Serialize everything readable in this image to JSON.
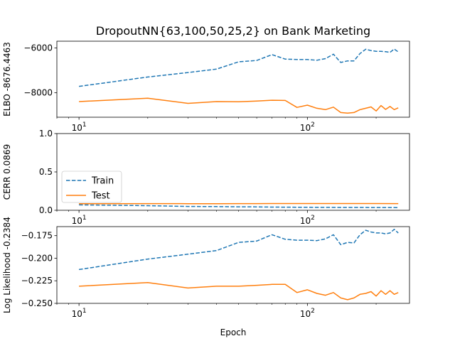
{
  "title": "DropoutNN{63,100,50,25,2} on Bank Marketing",
  "xlabel": "Epoch",
  "colors": {
    "train": "#1f77b4",
    "test": "#ff7f0e"
  },
  "legend": {
    "placement": "lower-left",
    "panel": 1,
    "entries": [
      "Train",
      "Test"
    ]
  },
  "x_ticks": [
    {
      "base": "10",
      "exp": "1"
    },
    {
      "base": "10",
      "exp": "2"
    }
  ],
  "chart_data": [
    {
      "type": "line",
      "xscale": "log",
      "xlim": [
        8,
        280
      ],
      "ylim": [
        -9100,
        -5700
      ],
      "ylabel": "ELBO -8676.4463",
      "yticks": [
        -6000,
        -8000
      ],
      "ytick_labels": [
        "−6000",
        "−8000"
      ],
      "x": [
        10,
        20,
        30,
        40,
        50,
        60,
        70,
        80,
        90,
        100,
        110,
        120,
        130,
        140,
        150,
        160,
        170,
        180,
        190,
        200,
        210,
        220,
        230,
        240,
        250
      ],
      "series": [
        {
          "name": "Train",
          "style": "dashed",
          "values": [
            -7720,
            -7300,
            -7100,
            -6950,
            -6620,
            -6560,
            -6300,
            -6500,
            -6520,
            -6520,
            -6550,
            -6480,
            -6280,
            -6650,
            -6580,
            -6580,
            -6250,
            -6060,
            -6120,
            -6150,
            -6150,
            -6170,
            -6200,
            -6050,
            -6180
          ]
        },
        {
          "name": "Test",
          "style": "solid",
          "values": [
            -8400,
            -8250,
            -8480,
            -8400,
            -8410,
            -8380,
            -8340,
            -8350,
            -8660,
            -8560,
            -8700,
            -8760,
            -8650,
            -8890,
            -8920,
            -8890,
            -8760,
            -8700,
            -8640,
            -8820,
            -8580,
            -8750,
            -8620,
            -8760,
            -8680
          ]
        }
      ]
    },
    {
      "type": "line",
      "xscale": "log",
      "xlim": [
        8,
        280
      ],
      "ylim": [
        0,
        1.0
      ],
      "ylabel": "CERR 0.0869",
      "yticks": [
        0,
        0.5,
        1.0
      ],
      "ytick_labels": [
        "0.0",
        "0.5",
        "1.0"
      ],
      "x": [
        10,
        20,
        30,
        40,
        50,
        60,
        70,
        80,
        90,
        100,
        120,
        150,
        200,
        250
      ],
      "series": [
        {
          "name": "Train",
          "style": "dashed",
          "values": [
            0.07,
            0.06,
            0.05,
            0.048,
            0.045,
            0.044,
            0.042,
            0.041,
            0.04,
            0.039,
            0.038,
            0.037,
            0.036,
            0.035
          ]
        },
        {
          "name": "Test",
          "style": "solid",
          "values": [
            0.085,
            0.087,
            0.086,
            0.086,
            0.087,
            0.087,
            0.088,
            0.088,
            0.088,
            0.088,
            0.088,
            0.088,
            0.088,
            0.087
          ]
        }
      ]
    },
    {
      "type": "line",
      "xscale": "log",
      "xlim": [
        8,
        280
      ],
      "ylim": [
        -0.25,
        -0.165
      ],
      "ylabel": "Log Likelihood -0.2384",
      "yticks": [
        -0.25,
        -0.225,
        -0.2,
        -0.175
      ],
      "ytick_labels": [
        "−0.250",
        "−0.225",
        "−0.200",
        "−0.175"
      ],
      "x": [
        10,
        20,
        30,
        40,
        50,
        60,
        70,
        80,
        90,
        100,
        110,
        120,
        130,
        140,
        150,
        160,
        170,
        180,
        190,
        200,
        210,
        220,
        230,
        240,
        250
      ],
      "series": [
        {
          "name": "Train",
          "style": "dashed",
          "values": [
            -0.2125,
            -0.201,
            -0.1955,
            -0.1915,
            -0.1825,
            -0.181,
            -0.174,
            -0.179,
            -0.18,
            -0.18,
            -0.1805,
            -0.1785,
            -0.174,
            -0.185,
            -0.1825,
            -0.183,
            -0.174,
            -0.169,
            -0.171,
            -0.172,
            -0.172,
            -0.173,
            -0.172,
            -0.168,
            -0.172
          ]
        },
        {
          "name": "Test",
          "style": "solid",
          "values": [
            -0.231,
            -0.227,
            -0.233,
            -0.231,
            -0.231,
            -0.23,
            -0.229,
            -0.229,
            -0.238,
            -0.235,
            -0.239,
            -0.241,
            -0.238,
            -0.244,
            -0.246,
            -0.244,
            -0.24,
            -0.239,
            -0.237,
            -0.242,
            -0.236,
            -0.24,
            -0.236,
            -0.24,
            -0.238
          ]
        }
      ]
    }
  ]
}
